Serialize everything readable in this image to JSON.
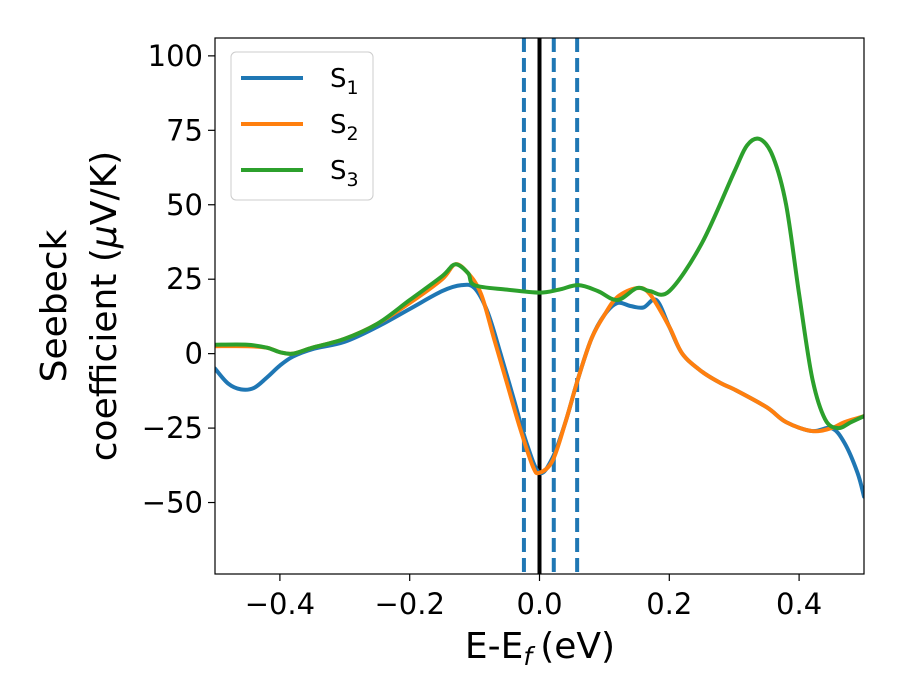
{
  "chart_data": {
    "type": "line",
    "xlabel": "E-E",
    "xlabel_sub": "f",
    "xlabel_unit": "(eV)",
    "ylabel_line1": "Seebeck",
    "ylabel_line2": "coefficient  (",
    "ylabel_mu": "μ",
    "ylabel_unit_tail": "V/K)",
    "xlim": [
      -0.5,
      0.5
    ],
    "ylim": [
      -74,
      106
    ],
    "x_ticks": [
      -0.4,
      -0.2,
      0.0,
      0.2,
      0.4
    ],
    "x_tick_labels": [
      "−0.4",
      "−0.2",
      "0.0",
      "0.2",
      "0.4"
    ],
    "y_ticks": [
      100,
      75,
      50,
      25,
      0,
      -25,
      -50
    ],
    "y_tick_labels": [
      "100",
      "75",
      "50",
      "25",
      "0",
      "−25",
      "−50"
    ],
    "legend_position": "top-left",
    "series": [
      {
        "name": "S",
        "name_sub": "1",
        "color": "#1f77b4",
        "points": [
          [
            -0.5,
            -5
          ],
          [
            -0.48,
            -10
          ],
          [
            -0.46,
            -12
          ],
          [
            -0.44,
            -11.5
          ],
          [
            -0.42,
            -8
          ],
          [
            -0.4,
            -4
          ],
          [
            -0.38,
            -1
          ],
          [
            -0.35,
            1.5
          ],
          [
            -0.3,
            4
          ],
          [
            -0.25,
            9
          ],
          [
            -0.2,
            15
          ],
          [
            -0.15,
            21
          ],
          [
            -0.12,
            23
          ],
          [
            -0.1,
            22
          ],
          [
            -0.08,
            14
          ],
          [
            -0.06,
            0
          ],
          [
            -0.04,
            -15
          ],
          [
            -0.02,
            -30
          ],
          [
            0.0,
            -40
          ],
          [
            0.02,
            -35
          ],
          [
            0.04,
            -23
          ],
          [
            0.06,
            -8
          ],
          [
            0.08,
            5
          ],
          [
            0.1,
            13
          ],
          [
            0.12,
            17
          ],
          [
            0.14,
            16
          ],
          [
            0.16,
            15.5
          ],
          [
            0.18,
            18
          ],
          [
            0.2,
            9
          ],
          [
            0.22,
            0
          ],
          [
            0.25,
            -6
          ],
          [
            0.28,
            -10
          ],
          [
            0.3,
            -12
          ],
          [
            0.35,
            -18
          ],
          [
            0.38,
            -23
          ],
          [
            0.42,
            -26
          ],
          [
            0.45,
            -25
          ],
          [
            0.47,
            -30
          ],
          [
            0.49,
            -40
          ],
          [
            0.5,
            -48
          ]
        ]
      },
      {
        "name": "S",
        "name_sub": "2",
        "color": "#ff7f0e",
        "points": [
          [
            -0.5,
            2.5
          ],
          [
            -0.45,
            2.5
          ],
          [
            -0.42,
            2
          ],
          [
            -0.4,
            0.5
          ],
          [
            -0.38,
            0
          ],
          [
            -0.35,
            2
          ],
          [
            -0.3,
            5
          ],
          [
            -0.25,
            10
          ],
          [
            -0.2,
            17
          ],
          [
            -0.15,
            25
          ],
          [
            -0.13,
            30
          ],
          [
            -0.11,
            27
          ],
          [
            -0.09,
            20
          ],
          [
            -0.07,
            5
          ],
          [
            -0.05,
            -10
          ],
          [
            -0.03,
            -25
          ],
          [
            -0.01,
            -38
          ],
          [
            0.0,
            -40
          ],
          [
            0.02,
            -36
          ],
          [
            0.04,
            -23
          ],
          [
            0.06,
            -8
          ],
          [
            0.08,
            5
          ],
          [
            0.1,
            13
          ],
          [
            0.12,
            19
          ],
          [
            0.15,
            22
          ],
          [
            0.17,
            20
          ],
          [
            0.2,
            9
          ],
          [
            0.22,
            0
          ],
          [
            0.25,
            -6
          ],
          [
            0.28,
            -10
          ],
          [
            0.3,
            -12
          ],
          [
            0.35,
            -18
          ],
          [
            0.38,
            -23
          ],
          [
            0.42,
            -26
          ],
          [
            0.45,
            -25
          ],
          [
            0.47,
            -23
          ],
          [
            0.5,
            -21
          ]
        ]
      },
      {
        "name": "S",
        "name_sub": "3",
        "color": "#2ca02c",
        "points": [
          [
            -0.5,
            3
          ],
          [
            -0.45,
            3
          ],
          [
            -0.42,
            2
          ],
          [
            -0.4,
            0.5
          ],
          [
            -0.38,
            0
          ],
          [
            -0.35,
            2
          ],
          [
            -0.3,
            5
          ],
          [
            -0.25,
            10
          ],
          [
            -0.2,
            18
          ],
          [
            -0.15,
            26
          ],
          [
            -0.13,
            30
          ],
          [
            -0.11,
            27
          ],
          [
            -0.1,
            23
          ],
          [
            -0.05,
            21.5
          ],
          [
            0.0,
            20.5
          ],
          [
            0.03,
            21.5
          ],
          [
            0.06,
            23
          ],
          [
            0.09,
            21
          ],
          [
            0.12,
            18
          ],
          [
            0.15,
            22
          ],
          [
            0.17,
            21
          ],
          [
            0.2,
            21
          ],
          [
            0.25,
            37
          ],
          [
            0.3,
            61
          ],
          [
            0.32,
            70
          ],
          [
            0.34,
            72
          ],
          [
            0.36,
            66
          ],
          [
            0.38,
            50
          ],
          [
            0.4,
            20
          ],
          [
            0.42,
            -8
          ],
          [
            0.44,
            -22
          ],
          [
            0.46,
            -25
          ],
          [
            0.48,
            -23
          ],
          [
            0.5,
            -21
          ]
        ]
      }
    ],
    "vlines": [
      {
        "x": -0.024,
        "color": "#1f77b4",
        "style": "dashed"
      },
      {
        "x": 0.0,
        "color": "#000000",
        "style": "solid"
      },
      {
        "x": 0.022,
        "color": "#1f77b4",
        "style": "dashed"
      },
      {
        "x": 0.058,
        "color": "#1f77b4",
        "style": "dashed"
      }
    ]
  }
}
